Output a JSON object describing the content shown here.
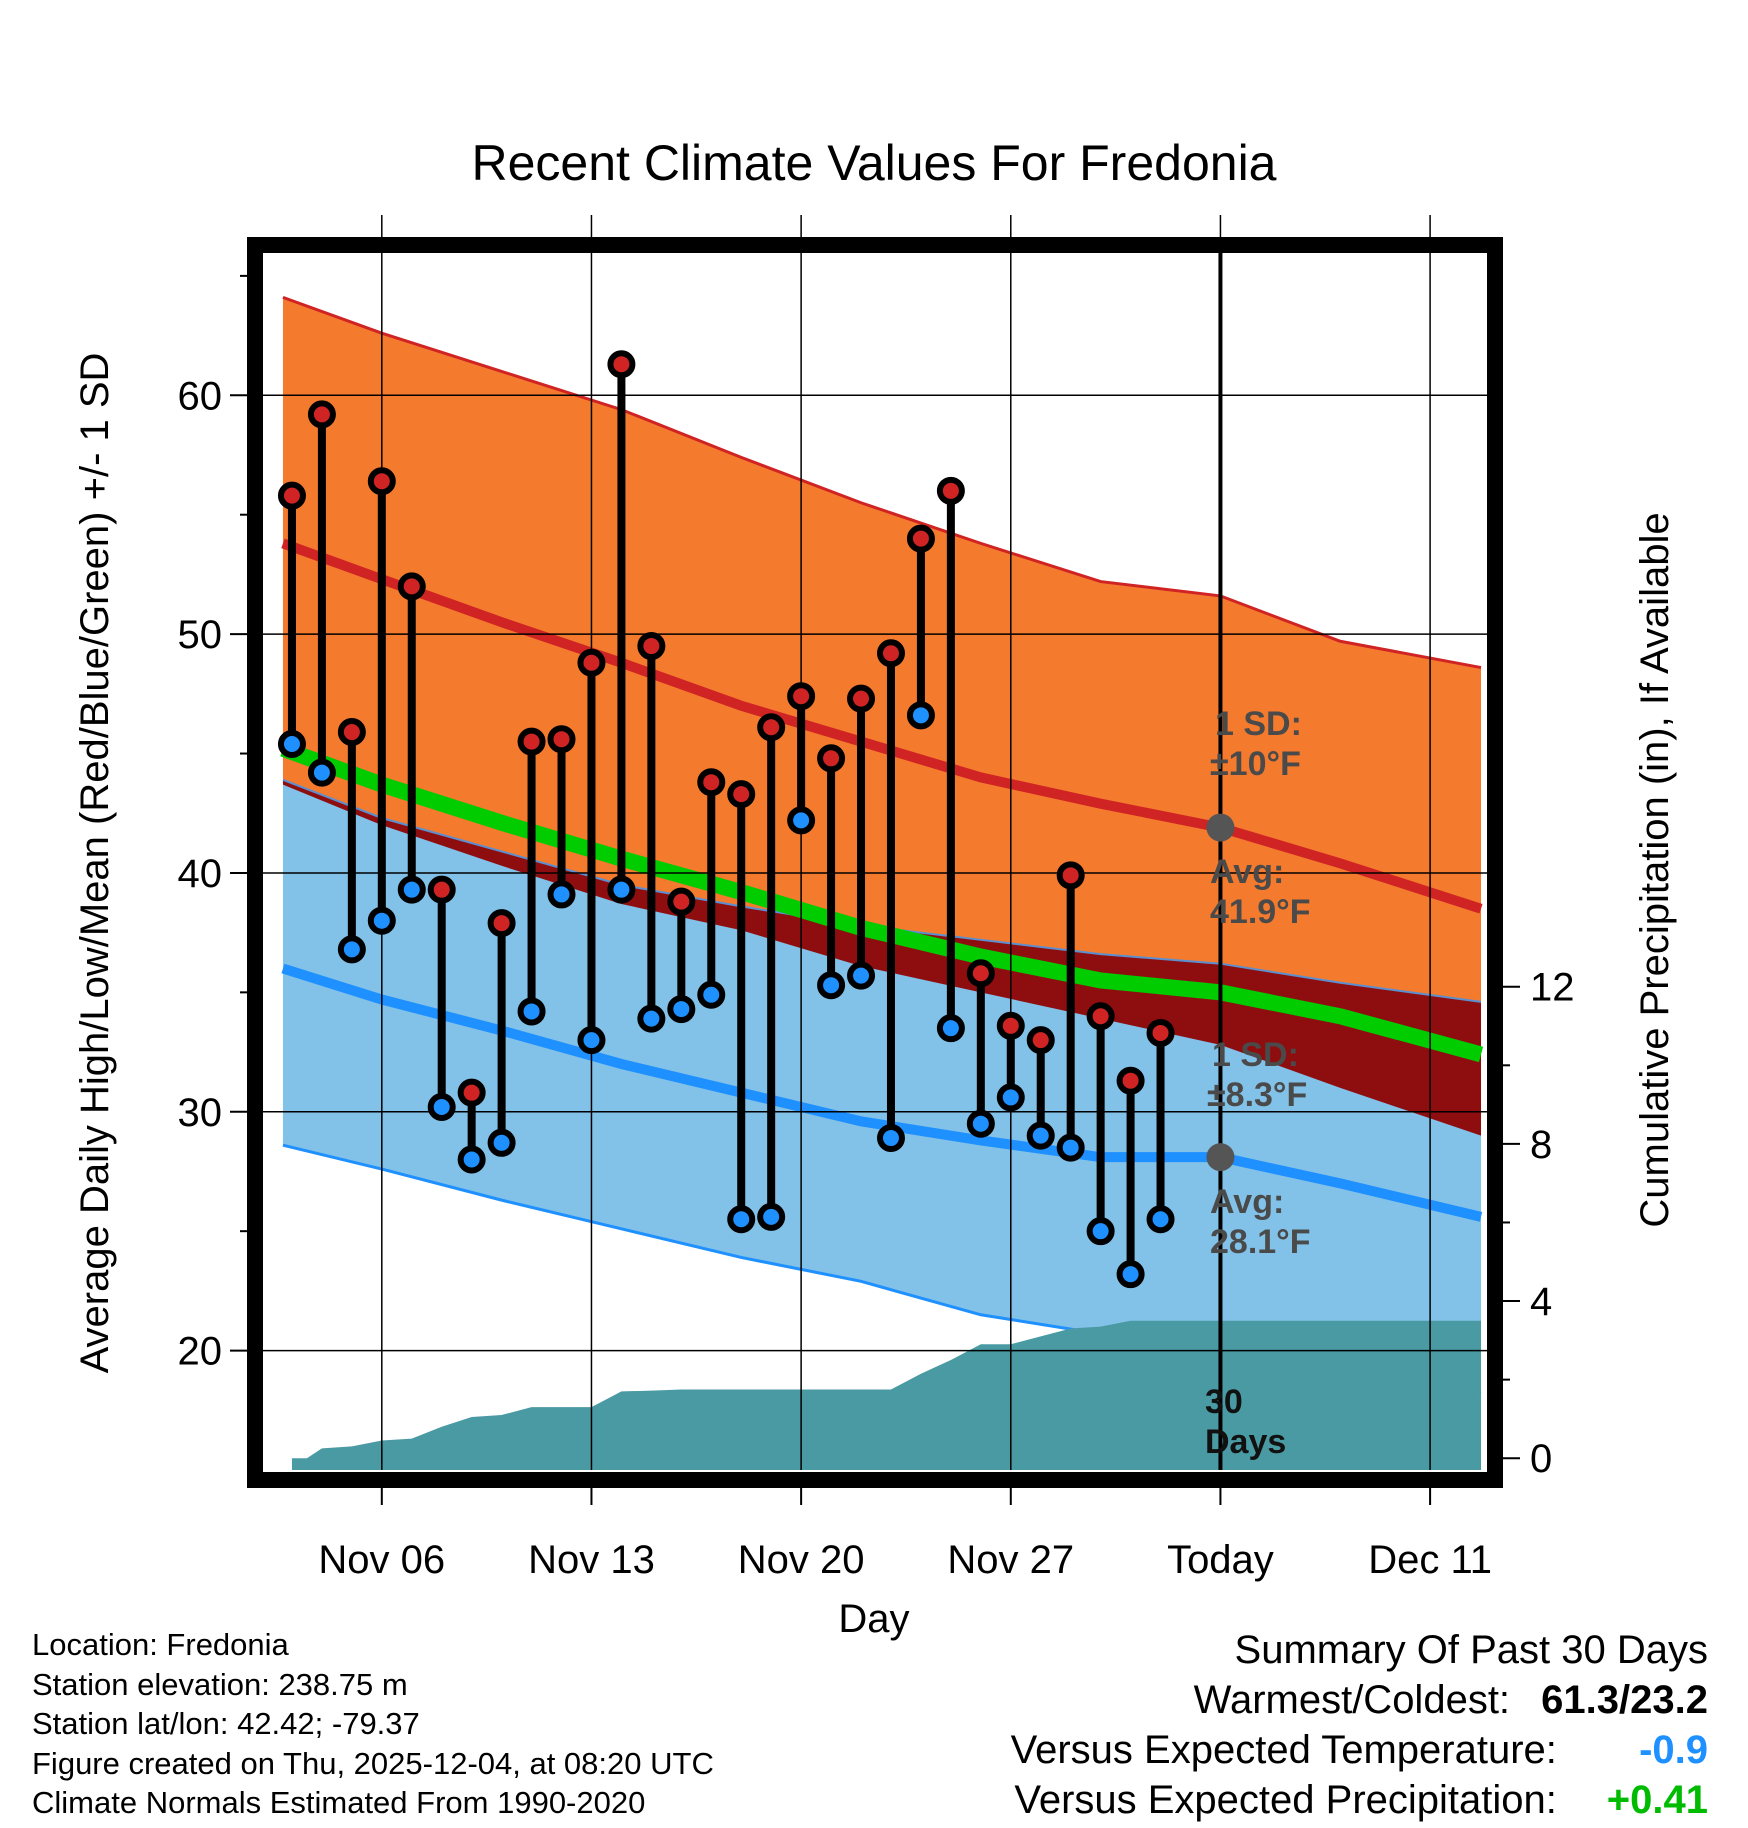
{
  "chart_data": {
    "type": "line",
    "title": "Recent Climate Values For Fredonia",
    "xlabel": "Day",
    "ylabel": "Average Daily High/Low/Mean (Red/Blue/Green) +/- 1 SD",
    "y2label": "Cumulative Precipitation (in), If Available",
    "xlim": [
      2,
      43
    ],
    "ylim": [
      15,
      66
    ],
    "y2lim": [
      -0.3,
      30.7
    ],
    "x_tick_labels": [
      {
        "x": 6,
        "label": "Nov 06"
      },
      {
        "x": 13,
        "label": "Nov 13"
      },
      {
        "x": 20,
        "label": "Nov 20"
      },
      {
        "x": 27,
        "label": "Nov 27"
      },
      {
        "x": 34,
        "label": "Today"
      },
      {
        "x": 41,
        "label": "Dec 11"
      }
    ],
    "y_ticks": [
      20,
      30,
      40,
      50,
      60
    ],
    "y2_ticks": [
      0,
      4,
      8,
      12
    ],
    "normals_x": [
      2.7,
      6,
      10,
      14,
      18,
      22,
      26,
      30,
      34,
      38,
      42.7
    ],
    "normal_high": [
      53.8,
      52.3,
      50.5,
      48.8,
      47.0,
      45.5,
      44.0,
      42.9,
      41.9,
      40.4,
      38.5
    ],
    "normal_high_plus_sd": [
      64.1,
      62.6,
      61.0,
      59.4,
      57.4,
      55.5,
      53.8,
      52.2,
      51.6,
      49.7,
      48.6
    ],
    "normal_mean": [
      45.2,
      43.7,
      42.1,
      40.6,
      39.2,
      37.7,
      36.5,
      35.5,
      35.0,
      34.0,
      32.4
    ],
    "normal_low": [
      36.0,
      34.7,
      33.4,
      32.0,
      30.8,
      29.6,
      28.8,
      28.1,
      28.1,
      27.0,
      25.6
    ],
    "normal_low_minus_sd": [
      28.6,
      27.6,
      26.3,
      25.1,
      23.9,
      22.9,
      21.5,
      20.7,
      19.8,
      19.0,
      18.2
    ],
    "normal_high_minus_sd": [
      43.7,
      42.0,
      40.3,
      38.7,
      37.6,
      36.1,
      35.0,
      33.9,
      32.8,
      31.0,
      29.0
    ],
    "normal_low_plus_sd": [
      43.9,
      42.3,
      40.9,
      39.5,
      38.6,
      37.8,
      37.2,
      36.6,
      36.2,
      35.4,
      34.6
    ],
    "days_x": [
      3,
      4,
      5,
      6,
      7,
      8,
      9,
      10,
      11,
      12,
      13,
      14,
      15,
      16,
      17,
      18,
      19,
      20,
      21,
      22,
      23,
      24,
      25,
      26,
      27,
      28,
      29,
      30,
      31,
      32,
      33
    ],
    "daily_high": [
      55.8,
      59.2,
      45.9,
      56.4,
      52.0,
      39.3,
      30.8,
      37.9,
      45.5,
      45.6,
      48.8,
      61.3,
      49.5,
      38.8,
      43.8,
      43.3,
      46.1,
      47.4,
      44.8,
      47.3,
      49.2,
      54.0,
      56.0,
      35.8,
      33.6,
      33.0,
      39.9,
      34.0,
      31.3,
      33.3,
      null
    ],
    "daily_low": [
      45.4,
      44.2,
      36.8,
      38.0,
      39.3,
      30.2,
      28.0,
      28.7,
      34.2,
      39.1,
      33.0,
      39.3,
      33.9,
      34.3,
      34.9,
      25.5,
      25.6,
      42.2,
      35.3,
      35.7,
      28.9,
      46.6,
      33.5,
      29.5,
      30.6,
      29.0,
      28.5,
      25.0,
      23.2,
      25.5,
      null
    ],
    "precip_x": [
      3,
      3.5,
      4,
      5,
      6,
      7,
      8,
      9,
      10,
      11,
      12,
      13,
      14,
      15,
      16,
      17,
      18,
      19,
      20,
      21,
      22,
      23,
      24,
      25,
      26,
      27,
      28,
      29,
      30,
      31,
      32,
      33,
      34,
      35,
      42.7
    ],
    "precip_cumulative": [
      0,
      0,
      0.25,
      0.3,
      0.45,
      0.5,
      0.8,
      1.05,
      1.1,
      1.3,
      1.3,
      1.3,
      1.7,
      1.72,
      1.75,
      1.75,
      1.75,
      1.75,
      1.75,
      1.75,
      1.75,
      1.75,
      2.15,
      2.5,
      2.9,
      2.9,
      3.1,
      3.3,
      3.35,
      3.5,
      3.5,
      3.5,
      3.5,
      3.5,
      3.5
    ],
    "today_x": 34,
    "today_high_avg": 41.9,
    "today_low_avg": 28.1,
    "annotations": {
      "high_sd_line1": "1 SD:",
      "high_sd_line2": "±10°F",
      "high_avg_line1": "Avg:",
      "high_avg_line2": "41.9°F",
      "low_sd_line1": "1 SD:",
      "low_sd_line2": "±8.3°F",
      "low_avg_line1": "Avg:",
      "low_avg_line2": "28.1°F",
      "days_line1": "30",
      "days_line2": "Days"
    },
    "colors": {
      "high_band": "#f47a2e",
      "low_band": "#82c1e8",
      "overlap_band": "#8e0e10",
      "high_line": "#d02424",
      "low_line": "#1e90ff",
      "mean_line": "#00cc00",
      "precip": "#4a9aa3",
      "high_marker": "#d02424",
      "low_marker": "#1e90ff",
      "today_marker": "#555555"
    }
  },
  "info": {
    "location": "Location: Fredonia",
    "elevation": "Station elevation: 238.75 m",
    "latlon": "Station lat/lon: 42.42; -79.37",
    "created": "Figure created on Thu, 2025-12-04, at 08:20 UTC",
    "normals": "Climate Normals Estimated From 1990-2020"
  },
  "summary": {
    "heading": "Summary Of Past 30 Days",
    "warm_cold_label": "Warmest/Coldest:",
    "warm_cold_value": "61.3/23.2",
    "temp_label": "Versus Expected Temperature:",
    "temp_value": "-0.9",
    "temp_color": "#1e90ff",
    "precip_label": "Versus Expected Precipitation:",
    "precip_value": "+0.41",
    "precip_color": "#00bb00"
  }
}
